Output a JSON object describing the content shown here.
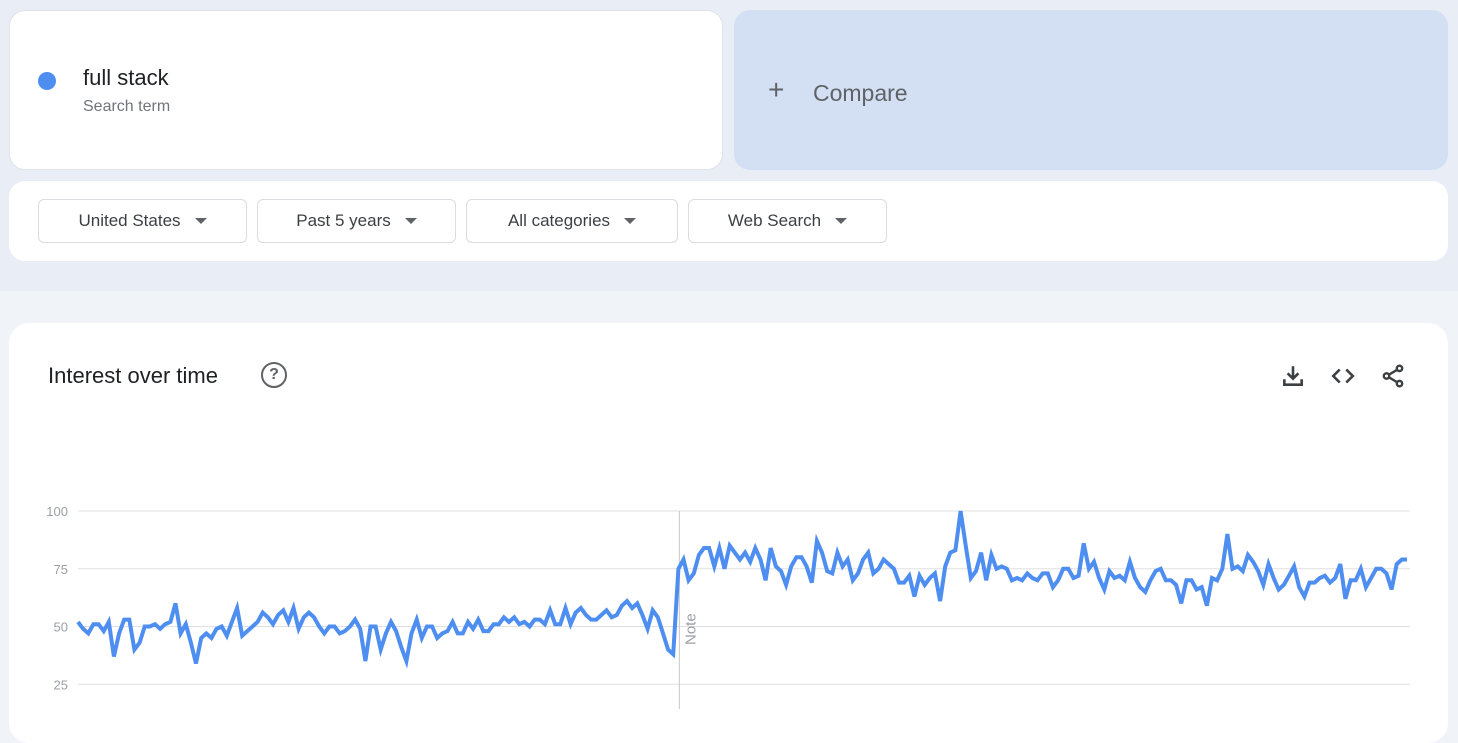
{
  "search_term": {
    "label": "full stack",
    "sublabel": "Search term",
    "color": "#4e8ef0"
  },
  "compare": {
    "label": "Compare",
    "icon": "plus-icon"
  },
  "filters": [
    {
      "label": "United States"
    },
    {
      "label": "Past 5 years"
    },
    {
      "label": "All categories"
    },
    {
      "label": "Web Search"
    }
  ],
  "interest_card": {
    "title": "Interest over time",
    "help_icon": "?",
    "actions": [
      "download-icon",
      "embed-code-icon",
      "share-icon"
    ]
  },
  "chart_data": {
    "type": "line",
    "title": "Interest over time",
    "yticks": [
      100,
      75,
      50,
      25
    ],
    "ylim": [
      0,
      100
    ],
    "grid": true,
    "annotation": "Note",
    "series": [
      {
        "name": "full stack",
        "color": "#4e8ef0",
        "values": [
          52,
          49,
          47,
          51,
          51,
          48,
          52,
          37,
          47,
          53,
          53,
          40,
          43,
          50,
          50,
          51,
          49,
          51,
          52,
          60,
          47,
          51,
          43,
          34,
          45,
          47,
          45,
          49,
          50,
          46,
          52,
          58,
          46,
          48,
          50,
          52,
          56,
          54,
          51,
          55,
          57,
          52,
          58,
          49,
          54,
          56,
          54,
          50,
          47,
          50,
          50,
          47,
          48,
          50,
          53,
          49,
          35,
          50,
          50,
          40,
          47,
          52,
          48,
          41,
          35,
          47,
          53,
          45,
          50,
          50,
          45,
          47,
          48,
          52,
          47,
          47,
          52,
          49,
          53,
          48,
          48,
          51,
          51,
          54,
          52,
          54,
          51,
          52,
          50,
          53,
          53,
          51,
          57,
          51,
          51,
          58,
          51,
          56,
          58,
          55,
          53,
          53,
          55,
          57,
          54,
          55,
          59,
          61,
          58,
          60,
          55,
          49,
          57,
          54,
          47,
          40,
          38,
          75,
          79,
          70,
          73,
          81,
          84,
          84,
          76,
          84,
          75,
          85,
          82,
          79,
          82,
          78,
          84,
          79,
          70,
          84,
          76,
          74,
          68,
          76,
          80,
          80,
          76,
          69,
          87,
          82,
          74,
          73,
          82,
          76,
          79,
          70,
          73,
          79,
          82,
          73,
          75,
          79,
          77,
          75,
          69,
          69,
          72,
          63,
          72,
          68,
          71,
          73,
          61,
          76,
          82,
          83,
          100,
          85,
          71,
          74,
          82,
          70,
          81,
          75,
          76,
          75,
          70,
          71,
          70,
          73,
          71,
          70,
          73,
          73,
          67,
          70,
          75,
          75,
          71,
          72,
          86,
          75,
          78,
          71,
          66,
          74,
          71,
          72,
          70,
          78,
          71,
          67,
          65,
          70,
          74,
          75,
          70,
          70,
          68,
          60,
          70,
          70,
          66,
          67,
          59,
          71,
          70,
          75,
          90,
          75,
          76,
          74,
          81,
          78,
          74,
          68,
          77,
          71,
          66,
          68,
          72,
          76,
          67,
          63,
          69,
          69,
          71,
          72,
          69,
          71,
          77,
          62,
          70,
          70,
          75,
          67,
          71,
          75,
          75,
          73,
          66,
          77,
          79,
          79
        ]
      }
    ]
  }
}
